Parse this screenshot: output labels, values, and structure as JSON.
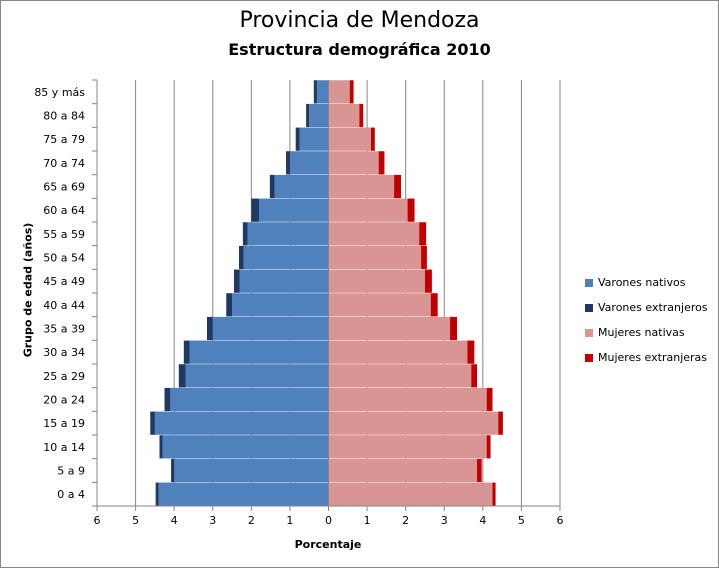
{
  "chart_data": {
    "type": "bar",
    "orientation": "horizontal-population-pyramid",
    "title": "Provincia de Mendoza",
    "subtitle": "Estructura demográfica 2010",
    "xlabel": "Porcentaje",
    "ylabel": "Grupo de edad (años)",
    "xlim": [
      -6,
      6
    ],
    "x_ticks": [
      -6,
      -5,
      -4,
      -3,
      -2,
      -1,
      0,
      1,
      2,
      3,
      4,
      5,
      6
    ],
    "x_tick_labels": [
      "6",
      "5",
      "4",
      "3",
      "2",
      "1",
      "0",
      "1",
      "2",
      "3",
      "4",
      "5",
      "6"
    ],
    "grid": "vertical major gridlines",
    "legend_position": "right",
    "categories": [
      "0 a 4",
      "5 a 9",
      "10 a 14",
      "15 a 19",
      "20 a 24",
      "25 a 29",
      "30 a 34",
      "35 a 39",
      "40 a 44",
      "45 a 49",
      "50 a 54",
      "55 a 59",
      "60 a 64",
      "65 a 69",
      "70 a 74",
      "75 a 79",
      "80 a 84",
      "85 y más"
    ],
    "series": [
      {
        "name": "Varones nativos",
        "side": "left",
        "color": "#4f81bd",
        "values": [
          4.4,
          4.0,
          4.3,
          4.5,
          4.1,
          3.7,
          3.6,
          3.0,
          2.5,
          2.3,
          2.2,
          2.1,
          1.8,
          1.4,
          1.0,
          0.75,
          0.5,
          0.3
        ]
      },
      {
        "name": "Varones extranjeros",
        "side": "left",
        "color": "#1f3864",
        "values": [
          0.08,
          0.08,
          0.08,
          0.12,
          0.15,
          0.18,
          0.15,
          0.15,
          0.15,
          0.15,
          0.12,
          0.12,
          0.2,
          0.12,
          0.1,
          0.1,
          0.08,
          0.08
        ]
      },
      {
        "name": "Mujeres nativas",
        "side": "right",
        "color": "#d99594",
        "values": [
          4.25,
          3.85,
          4.1,
          4.4,
          4.1,
          3.7,
          3.6,
          3.15,
          2.65,
          2.5,
          2.4,
          2.35,
          2.05,
          1.7,
          1.3,
          1.1,
          0.8,
          0.55
        ]
      },
      {
        "name": "Mujeres extranjeras",
        "side": "right",
        "color": "#c00000",
        "values": [
          0.08,
          0.12,
          0.1,
          0.12,
          0.15,
          0.15,
          0.18,
          0.18,
          0.18,
          0.18,
          0.15,
          0.18,
          0.18,
          0.18,
          0.15,
          0.1,
          0.1,
          0.1
        ]
      }
    ]
  }
}
